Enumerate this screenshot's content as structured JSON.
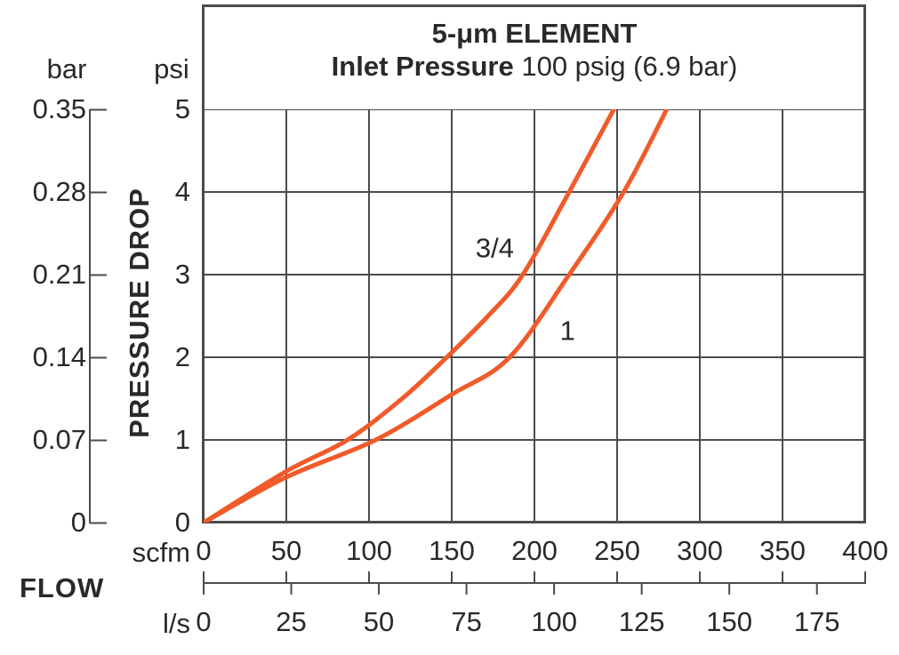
{
  "title": {
    "line1": "5-μm ELEMENT",
    "line2_bold": "Inlet Pressure",
    "line2_rest": " 100 psig (6.9 bar)"
  },
  "y_axis": {
    "bar_unit": "bar",
    "psi_unit": "psi",
    "label": "PRESSURE DROP",
    "bar_tick_labels": [
      "0.35",
      "0.28",
      "0.21",
      "0.14",
      "0.07",
      "0"
    ],
    "psi_tick_labels": [
      "5",
      "4",
      "3",
      "2",
      "1",
      "0"
    ]
  },
  "x_axis": {
    "scfm_unit": "scfm",
    "ls_unit": "l/s",
    "label": "FLOW",
    "scfm_tick_labels": [
      "0",
      "50",
      "100",
      "150",
      "200",
      "250",
      "300",
      "350",
      "400"
    ],
    "ls_tick_labels": [
      "0",
      "25",
      "50",
      "75",
      "100",
      "125",
      "150",
      "175"
    ]
  },
  "colors": {
    "curve": "#f15a29",
    "grid": "#4b4b4e",
    "text": "#29292c",
    "background": "#ffffff"
  },
  "chart_data": {
    "type": "line",
    "title": "5-μm ELEMENT",
    "subtitle": "Inlet Pressure 100 psig (6.9 bar)",
    "xlabel": "FLOW",
    "ylabel": "PRESSURE DROP",
    "grid": true,
    "x_units": [
      {
        "name": "scfm",
        "range": [
          0,
          400
        ],
        "tick_step": 50
      },
      {
        "name": "l/s",
        "range": [
          0,
          175
        ],
        "tick_step": 25,
        "scfm_per_unit": 2.1189
      }
    ],
    "y_units": [
      {
        "name": "psi",
        "range": [
          0,
          5
        ],
        "tick_step": 1
      },
      {
        "name": "bar",
        "range": [
          0,
          0.35
        ],
        "tick_step": 0.07
      }
    ],
    "scfm_gridlines": [
      0,
      50,
      100,
      150,
      200,
      250,
      300,
      350,
      400
    ],
    "psi_gridlines": [
      0,
      1,
      2,
      3,
      4,
      5
    ],
    "ls_ruler_ticks": [
      0,
      25,
      50,
      75,
      100,
      125,
      150,
      175
    ],
    "series": [
      {
        "name": "3/4",
        "color": "#f15a29",
        "points_scfm_psi": [
          [
            0,
            0
          ],
          [
            50,
            0.62
          ],
          [
            87,
            1
          ],
          [
            120,
            1.5
          ],
          [
            147,
            2
          ],
          [
            172,
            2.5
          ],
          [
            193,
            3
          ],
          [
            221,
            4
          ],
          [
            248,
            5
          ]
        ],
        "label_pos_scfm_psi": [
          176,
          3.3
        ]
      },
      {
        "name": "1",
        "color": "#f15a29",
        "points_scfm_psi": [
          [
            0,
            0
          ],
          [
            50,
            0.55
          ],
          [
            104,
            1
          ],
          [
            150,
            1.55
          ],
          [
            185,
            2
          ],
          [
            221,
            3
          ],
          [
            254,
            4
          ],
          [
            280,
            5
          ]
        ],
        "label_pos_scfm_psi": [
          220,
          2.3
        ]
      }
    ]
  }
}
